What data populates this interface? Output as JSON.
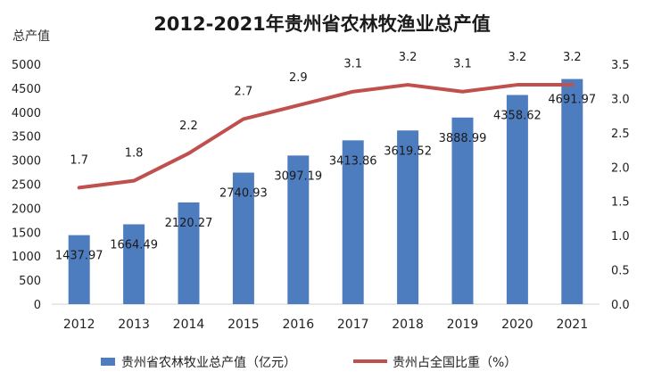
{
  "chart_data": {
    "type": "bar",
    "title": "2012-2021年贵州省农林牧渔业总产值",
    "y_left_unit": "总产值",
    "categories": [
      "2012",
      "2013",
      "2014",
      "2015",
      "2016",
      "2017",
      "2018",
      "2019",
      "2020",
      "2021"
    ],
    "series": [
      {
        "name": "贵州省农林牧业总产值（亿元）",
        "type": "bar",
        "axis": "left",
        "color": "#4e7dbf",
        "values": [
          1437.97,
          1664.49,
          2120.27,
          2740.93,
          3097.19,
          3413.86,
          3619.52,
          3888.99,
          4358.62,
          4691.97
        ],
        "value_labels": [
          "1437.97",
          "1664.49",
          "2120.27",
          "2740.93",
          "3097.19",
          "3413.86",
          "3619.52",
          "3888.99",
          "4358.62",
          "4691.97"
        ]
      },
      {
        "name": "贵州占全国比重（%）",
        "type": "line",
        "axis": "right",
        "color": "#c0504d",
        "values": [
          1.7,
          1.8,
          2.2,
          2.7,
          2.9,
          3.1,
          3.2,
          3.1,
          3.2,
          3.2
        ],
        "value_labels": [
          "1.7",
          "1.8",
          "2.2",
          "2.7",
          "2.9",
          "3.1",
          "3.2",
          "3.1",
          "3.2",
          "3.2"
        ]
      }
    ],
    "y_left": {
      "range": [
        0,
        5000
      ],
      "ticks": [
        "0",
        "500",
        "1000",
        "1500",
        "2000",
        "2500",
        "3000",
        "3500",
        "4000",
        "4500",
        "5000"
      ]
    },
    "y_right": {
      "range": [
        0,
        3.5
      ],
      "ticks": [
        "0.0",
        "0.5",
        "1.0",
        "1.5",
        "2.0",
        "2.5",
        "3.0",
        "3.5"
      ]
    },
    "grid": false,
    "legend_position": "bottom"
  }
}
